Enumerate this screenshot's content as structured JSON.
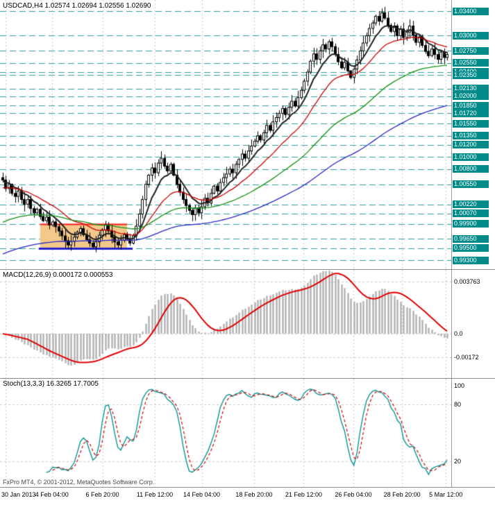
{
  "title": {
    "text": "USDCAD,H4 1.02574 1.02694 1.02556 1.02690",
    "symbol": "USDCAD",
    "timeframe": "H4",
    "open": "1.02574",
    "high": "1.02694",
    "low": "1.02556",
    "close": "1.02690"
  },
  "footer": {
    "copyright": "FxPro MT4, © 2001-2012, MetaQuotes Software Corp."
  },
  "colors": {
    "level_line": "#2f9d9d",
    "level_badge_bg": "#008b8b",
    "level_badge_text": "#ffffff",
    "grid": "#c9c9c9",
    "candle": "#000000",
    "candle_bull_fill": "#ffffff",
    "candle_bear_fill": "#000000",
    "ma_fast": "#202020",
    "ma_medium": "#cc0000",
    "ma_slow": "#129012",
    "ma_slowest": "#2828c8",
    "macd_histogram": "#b0b0b0",
    "macd_signal": "#e00000",
    "stoch_k": "#0d9494",
    "stoch_d": "#d00000",
    "zone_fill": "#f2c98a",
    "zone_top": "#ff2020",
    "zone_bottom": "#2222cc"
  },
  "time_axis": {
    "labels": [
      {
        "text": "30 Jan 2013",
        "pos": 0.012
      },
      {
        "text": "4 Feb 04:00",
        "pos": 0.115
      },
      {
        "text": "6 Feb 20:00",
        "pos": 0.227
      },
      {
        "text": "11 Feb 12:00",
        "pos": 0.343
      },
      {
        "text": "14 Feb 04:00",
        "pos": 0.447
      },
      {
        "text": "18 Feb 20:00",
        "pos": 0.563
      },
      {
        "text": "21 Feb 12:00",
        "pos": 0.673
      },
      {
        "text": "26 Feb 04:00",
        "pos": 0.783
      },
      {
        "text": "28 Feb 20:00",
        "pos": 0.891
      },
      {
        "text": "5 Mar 12:00",
        "pos": 0.988
      }
    ]
  },
  "chart_data": [
    {
      "type": "candlestick",
      "title": "USDCAD H4",
      "price_range": [
        0.9922,
        1.0352
      ],
      "levels": [
        {
          "value": 1.034,
          "label": "1.03400"
        },
        {
          "value": 1.03,
          "label": "1.03000"
        },
        {
          "value": 1.0275,
          "label": "1.02750"
        },
        {
          "value": 1.0255,
          "label": "1.02550"
        },
        {
          "value": 1.024,
          "label": "1.02400"
        },
        {
          "value": 1.0235,
          "label": "1.02350"
        },
        {
          "value": 1.0213,
          "label": "1.02130"
        },
        {
          "value": 1.02,
          "label": "1.02000"
        },
        {
          "value": 1.0185,
          "label": "1.01850"
        },
        {
          "value": 1.0172,
          "label": "1.01720"
        },
        {
          "value": 1.0155,
          "label": "1.01550"
        },
        {
          "value": 1.0135,
          "label": "1.01350"
        },
        {
          "value": 1.012,
          "label": "1.01200"
        },
        {
          "value": 1.01,
          "label": "1.01000"
        },
        {
          "value": 1.008,
          "label": "1.00800"
        },
        {
          "value": 1.0055,
          "label": "1.00550"
        },
        {
          "value": 1.0022,
          "label": "1.00220"
        },
        {
          "value": 1.0007,
          "label": "1.00070"
        },
        {
          "value": 0.999,
          "label": "0.99900"
        },
        {
          "value": 0.9965,
          "label": "0.99650"
        },
        {
          "value": 0.995,
          "label": "0.99500"
        },
        {
          "value": 0.993,
          "label": "0.99300"
        }
      ],
      "closes": [
        1.0062,
        1.0048,
        1.0055,
        1.004,
        1.0035,
        1.0044,
        1.003,
        1.0022,
        1.003,
        1.0015,
        1.0008,
        1.0014,
        1.0002,
        0.9995,
        1.0001,
        0.9988,
        0.9993,
        0.9985,
        0.9978,
        0.997,
        0.9962,
        0.9955,
        0.9961,
        0.9968,
        0.9976,
        0.9982,
        0.9972,
        0.9964,
        0.9958,
        0.9952,
        0.996,
        0.9971,
        0.998,
        0.9988,
        0.9978,
        0.9968,
        0.996,
        0.9955,
        0.9963,
        0.9972,
        0.9965,
        0.9958,
        0.997,
        0.9986,
        1.0006,
        1.003,
        1.0055,
        1.007,
        1.0082,
        1.0074,
        1.009,
        1.0098,
        1.0085,
        1.0077,
        1.0088,
        1.007,
        1.0055,
        1.0042,
        1.003,
        1.002,
        1.0012,
        1.0005,
        1.0016,
        1.0008,
        1.0018,
        1.0032,
        1.0024,
        1.004,
        1.0052,
        1.0044,
        1.0058,
        1.0066,
        1.0072,
        1.008,
        1.0074,
        1.0088,
        1.0096,
        1.0105,
        1.0098,
        1.011,
        1.0118,
        1.0126,
        1.0135,
        1.0128,
        1.014,
        1.0152,
        1.0144,
        1.0158,
        1.0165,
        1.0172,
        1.018,
        1.017,
        1.0182,
        1.0192,
        1.0184,
        1.0198,
        1.021,
        1.0225,
        1.024,
        1.0258,
        1.027,
        1.0261,
        1.0275,
        1.0285,
        1.0278,
        1.029,
        1.0282,
        1.0269,
        1.0257,
        1.0247,
        1.0256,
        1.0242,
        1.0231,
        1.0245,
        1.026,
        1.0275,
        1.0288,
        1.03,
        1.0312,
        1.0321,
        1.0332,
        1.0324,
        1.0338,
        1.0329,
        1.0317,
        1.0307,
        1.0316,
        1.03,
        1.0311,
        1.0297,
        1.0306,
        1.0316,
        1.0301,
        1.0289,
        1.0298,
        1.0284,
        1.0274,
        1.0267,
        1.0278,
        1.0269,
        1.0261,
        1.0273,
        1.0264,
        1.0269
      ],
      "moving_averages": [
        {
          "name": "ma-fast",
          "period": 8,
          "start": 1.006
        },
        {
          "name": "ma-medium",
          "period": 21,
          "start": 1.0048
        },
        {
          "name": "ma-slow",
          "period": 55,
          "start": 0.999
        },
        {
          "name": "ma-slowest",
          "period": 110,
          "start": 0.9938
        }
      ],
      "zone": {
        "from_index": 12,
        "to_index": 40,
        "top": 0.999,
        "bottom": 0.995
      }
    },
    {
      "type": "bar",
      "name": "MACD",
      "label_text": "MACD(12,26,9) 0.000172 0.000553",
      "params": [
        12,
        26,
        9
      ],
      "current_values": [
        0.000172,
        0.000553
      ],
      "value_range": [
        -0.003,
        0.0044
      ],
      "scale": [
        {
          "value": 0.003763,
          "label": "0.003763"
        },
        {
          "value": 0.0,
          "label": "0.0"
        },
        {
          "value": -0.00172,
          "label": "-0.00172"
        }
      ]
    },
    {
      "type": "line",
      "name": "Stochastic",
      "label_text": "Stoch(13,3,3) 16.3265 17.7005",
      "params": [
        13,
        3,
        3
      ],
      "current_values": [
        16.3265,
        17.7005
      ],
      "value_range": [
        -5,
        105
      ],
      "scale": [
        {
          "value": 100,
          "label": "100"
        },
        {
          "value": 80,
          "label": "80"
        },
        {
          "value": 20,
          "label": "20"
        }
      ]
    }
  ]
}
